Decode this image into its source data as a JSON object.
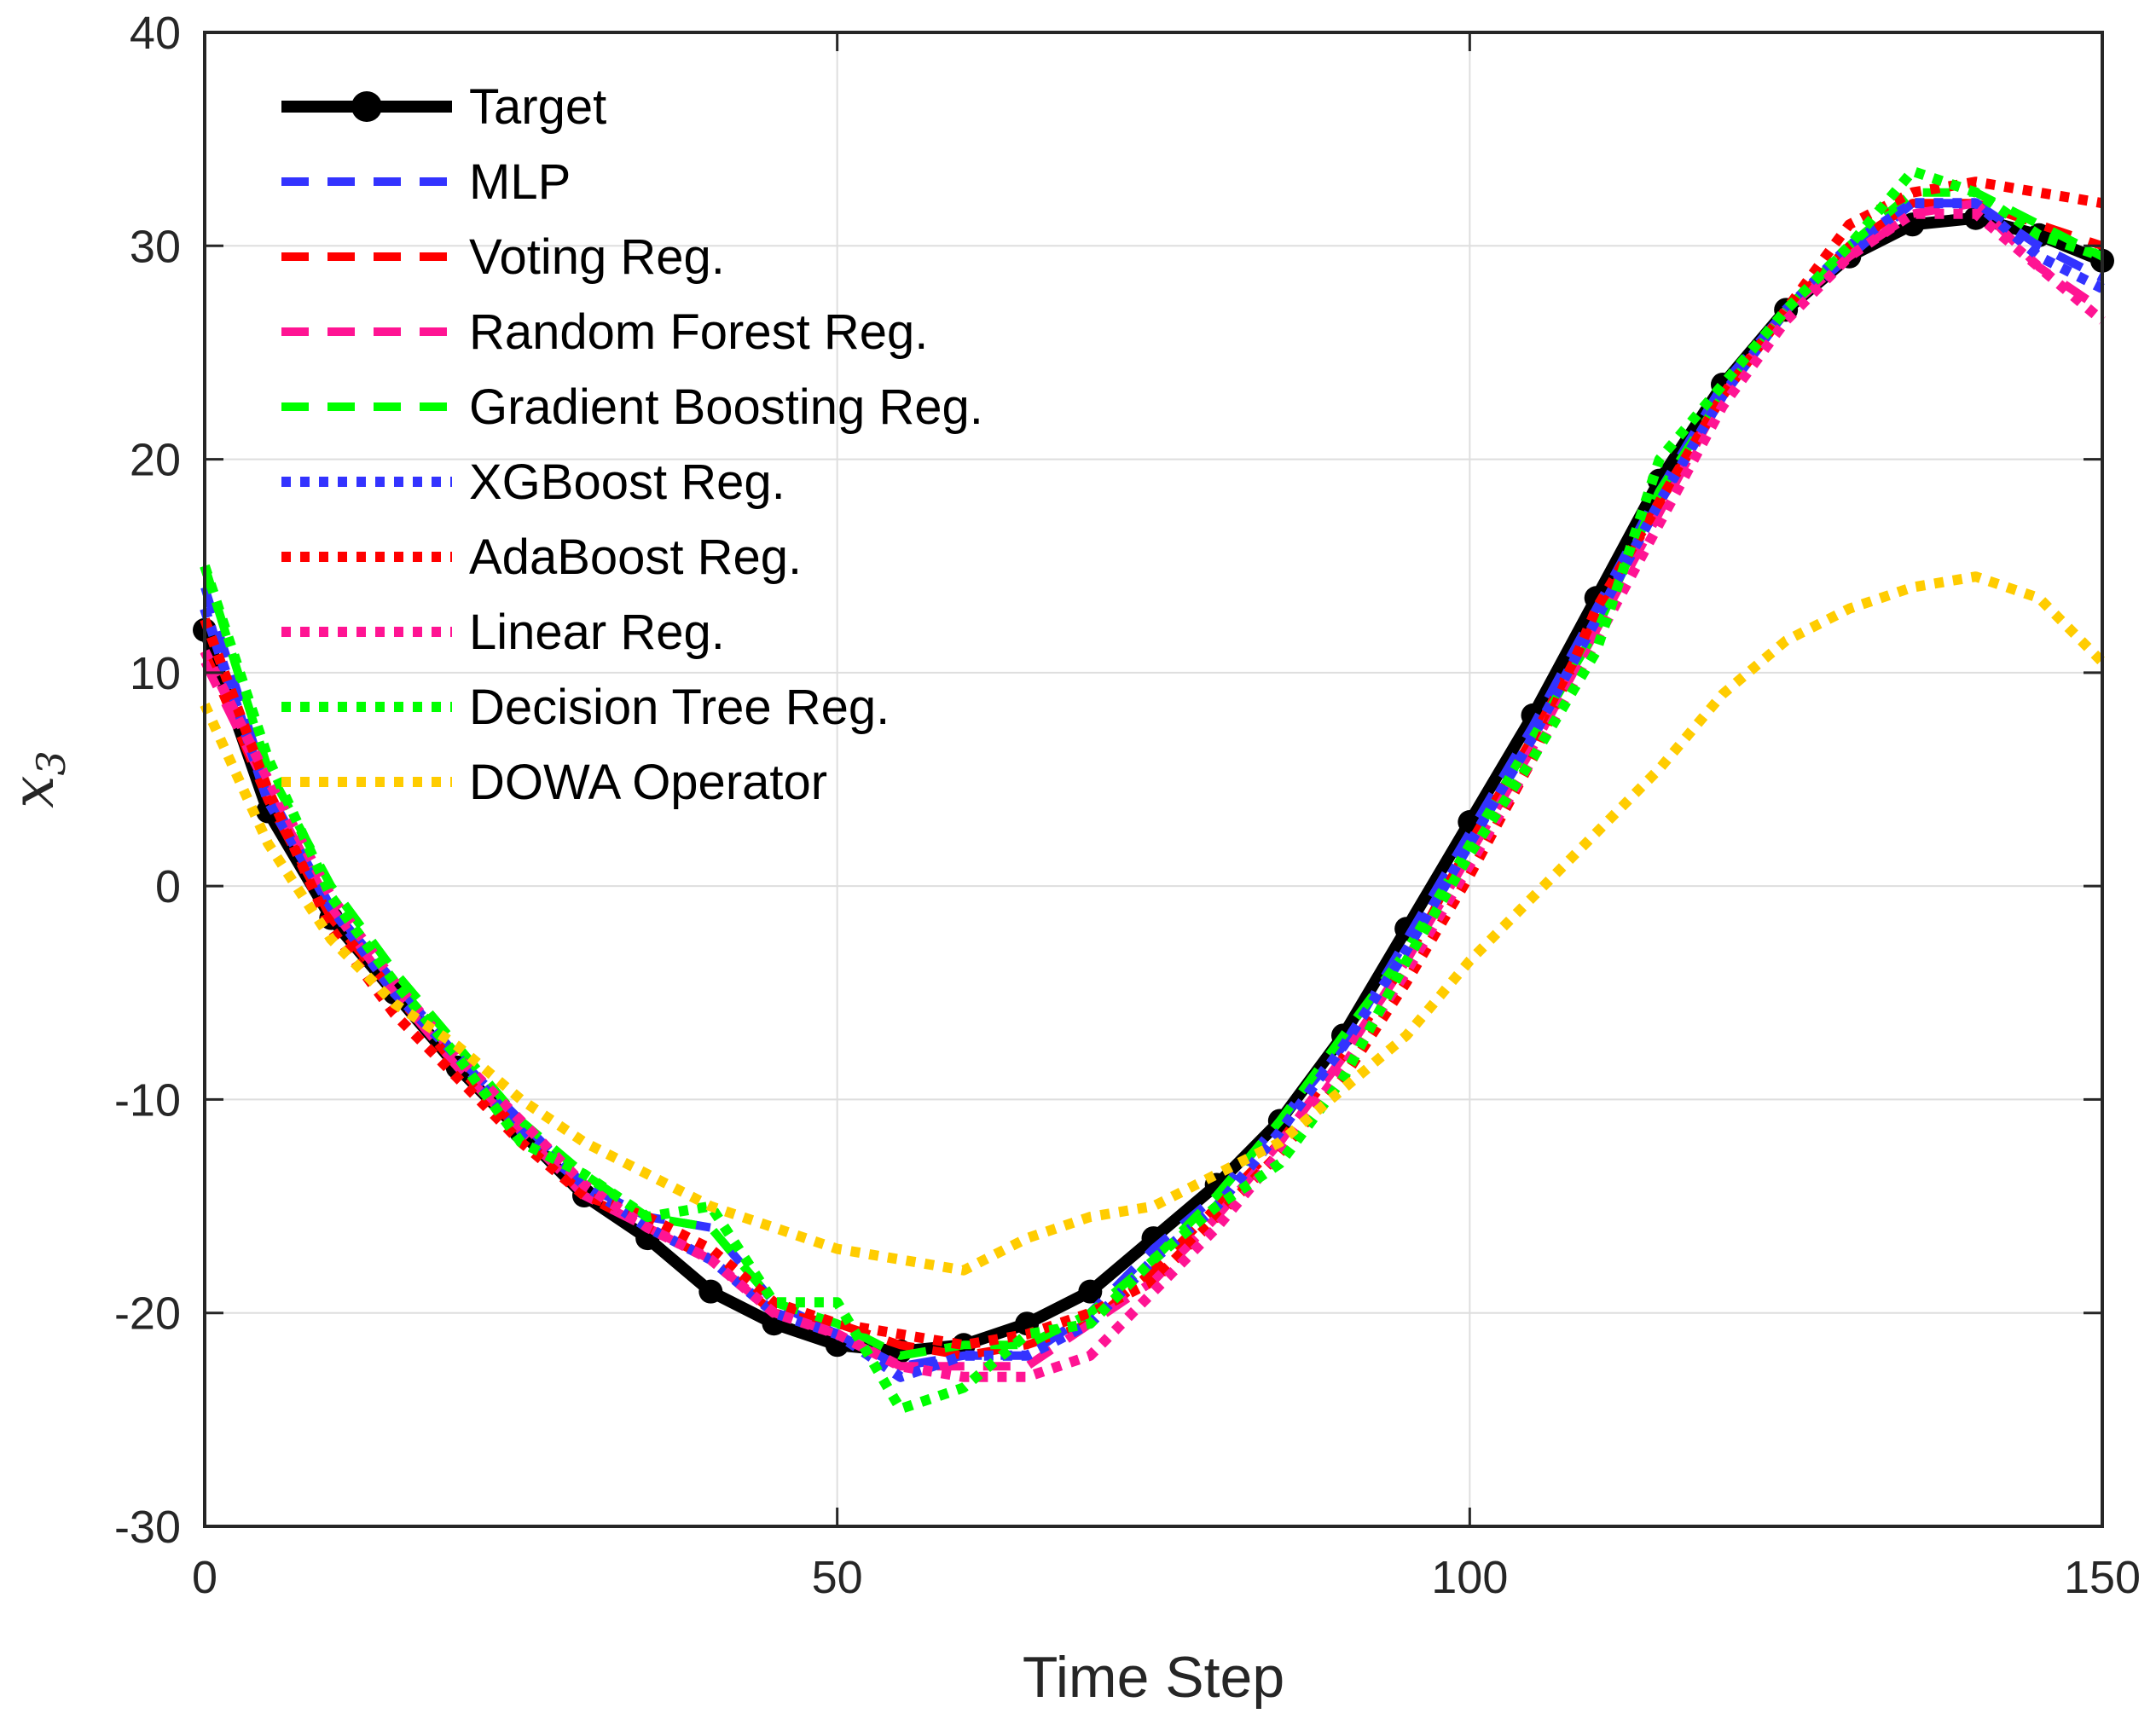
{
  "chart_data": {
    "type": "line",
    "title": "",
    "xlabel": "Time Step",
    "ylabel": {
      "symbol": "x",
      "subscript": "3"
    },
    "xlim": [
      0,
      150
    ],
    "ylim": [
      -30,
      40
    ],
    "xticks": [
      0,
      50,
      100,
      150
    ],
    "yticks": [
      -30,
      -20,
      -10,
      0,
      10,
      20,
      30,
      40
    ],
    "xtick_labels": [
      "0",
      "50",
      "100",
      "150"
    ],
    "ytick_labels": [
      "-30",
      "-20",
      "-10",
      "0",
      "10",
      "20",
      "30",
      "40"
    ],
    "grid": true,
    "legend_position": "top-left",
    "series": [
      {
        "name": "Target",
        "color": "#000000",
        "style": "solid-marker",
        "x": [
          0,
          5,
          10,
          15,
          20,
          25,
          30,
          35,
          40,
          45,
          50,
          55,
          60,
          65,
          70,
          75,
          80,
          85,
          90,
          95,
          100,
          105,
          110,
          115,
          120,
          125,
          130,
          135,
          140,
          145,
          150
        ],
        "y": [
          12,
          3.5,
          -1.5,
          -5,
          -8.5,
          -11.5,
          -14.5,
          -16.5,
          -19,
          -20.5,
          -21.5,
          -21.8,
          -21.5,
          -20.5,
          -19,
          -16.5,
          -14,
          -11,
          -7,
          -2,
          3,
          8,
          13.5,
          19,
          23.5,
          27,
          29.5,
          31,
          31.3,
          30.5,
          29.3
        ]
      },
      {
        "name": "MLP",
        "color": "#3333ff",
        "style": "dashed",
        "x": [
          0,
          5,
          10,
          15,
          20,
          25,
          30,
          35,
          40,
          45,
          50,
          55,
          60,
          65,
          70,
          75,
          80,
          85,
          90,
          95,
          100,
          105,
          110,
          115,
          120,
          125,
          130,
          135,
          140,
          145,
          150
        ],
        "y": [
          14,
          4.5,
          -1,
          -4.5,
          -8,
          -11,
          -14,
          -15.5,
          -16,
          -19.5,
          -21,
          -22.5,
          -22,
          -22,
          -20,
          -17,
          -14.5,
          -11,
          -7.5,
          -2.5,
          2.5,
          7.5,
          13,
          18.5,
          23.5,
          27,
          29.5,
          32,
          32,
          30,
          28.5
        ]
      },
      {
        "name": "Voting Reg.",
        "color": "#ff0000",
        "style": "dashed",
        "x": [
          0,
          5,
          10,
          15,
          20,
          25,
          30,
          35,
          40,
          45,
          50,
          55,
          60,
          65,
          70,
          75,
          80,
          85,
          90,
          95,
          100,
          105,
          110,
          115,
          120,
          125,
          130,
          135,
          140,
          145,
          150
        ],
        "y": [
          11,
          4,
          -1.5,
          -5,
          -8.5,
          -11.5,
          -14.5,
          -16,
          -17.5,
          -20,
          -20.5,
          -21.5,
          -22,
          -21.5,
          -20.5,
          -18,
          -15,
          -12,
          -8,
          -3.5,
          2,
          7,
          12.5,
          18,
          23,
          27,
          30,
          32,
          32,
          31,
          30
        ]
      },
      {
        "name": "Random Forest Reg.",
        "color": "#ff1493",
        "style": "dashed",
        "x": [
          0,
          5,
          10,
          15,
          20,
          25,
          30,
          35,
          40,
          45,
          50,
          55,
          60,
          65,
          70,
          75,
          80,
          85,
          90,
          95,
          100,
          105,
          110,
          115,
          120,
          125,
          130,
          135,
          140,
          145,
          150
        ],
        "y": [
          10.5,
          4.5,
          -1,
          -5,
          -8.5,
          -11.5,
          -14.5,
          -16,
          -17.5,
          -20,
          -21,
          -22.5,
          -22.5,
          -22.5,
          -20.5,
          -18.5,
          -15.5,
          -12,
          -8,
          -3.5,
          1.5,
          6.5,
          12,
          17.5,
          23,
          27,
          29.5,
          31.5,
          32,
          29,
          27
        ]
      },
      {
        "name": "Gradient Boosting Reg.",
        "color": "#00ff00",
        "style": "dashed",
        "x": [
          0,
          5,
          10,
          15,
          20,
          25,
          30,
          35,
          40,
          45,
          50,
          55,
          60,
          65,
          70,
          75,
          80,
          85,
          90,
          95,
          100,
          105,
          110,
          115,
          120,
          125,
          130,
          135,
          140,
          145,
          150
        ],
        "y": [
          15,
          5.5,
          0,
          -4,
          -7.5,
          -11,
          -13.5,
          -15.5,
          -16,
          -19.5,
          -20.5,
          -22,
          -21.5,
          -21.5,
          -20,
          -17.5,
          -14.5,
          -11,
          -7,
          -3,
          2,
          7,
          12,
          18.5,
          23,
          27,
          30,
          32.5,
          32.5,
          31,
          29.5
        ]
      },
      {
        "name": "XGBoost Reg.",
        "color": "#3333ff",
        "style": "dotted",
        "x": [
          0,
          5,
          10,
          15,
          20,
          25,
          30,
          35,
          40,
          45,
          50,
          55,
          60,
          65,
          70,
          75,
          80,
          85,
          90,
          95,
          100,
          105,
          110,
          115,
          120,
          125,
          130,
          135,
          140,
          145,
          150
        ],
        "y": [
          13,
          4,
          -1,
          -5,
          -8,
          -11.5,
          -14,
          -16,
          -17.5,
          -20,
          -21,
          -23,
          -22,
          -22,
          -20.5,
          -17.5,
          -15,
          -11.5,
          -7.5,
          -3,
          2,
          7,
          12.5,
          18,
          23,
          27,
          30,
          32,
          32,
          29.5,
          28
        ]
      },
      {
        "name": "AdaBoost Reg.",
        "color": "#ff0000",
        "style": "dotted",
        "x": [
          0,
          5,
          10,
          15,
          20,
          25,
          30,
          35,
          40,
          45,
          50,
          55,
          60,
          65,
          70,
          75,
          80,
          85,
          90,
          95,
          100,
          105,
          110,
          115,
          120,
          125,
          130,
          135,
          140,
          145,
          150
        ],
        "y": [
          12.5,
          4.5,
          -2,
          -6,
          -9,
          -12,
          -14.5,
          -15.5,
          -17,
          -19.5,
          -20.5,
          -21,
          -21.5,
          -21,
          -20,
          -18.5,
          -15.5,
          -12.5,
          -9,
          -4.5,
          0.5,
          6,
          13,
          18,
          23,
          27,
          31,
          32.5,
          33,
          32.5,
          32
        ]
      },
      {
        "name": "Linear Reg.",
        "color": "#ff1493",
        "style": "dotted",
        "x": [
          0,
          5,
          10,
          15,
          20,
          25,
          30,
          35,
          40,
          45,
          50,
          55,
          60,
          65,
          70,
          75,
          80,
          85,
          90,
          95,
          100,
          105,
          110,
          115,
          120,
          125,
          130,
          135,
          140,
          145,
          150
        ],
        "y": [
          11,
          5,
          -0.5,
          -4.5,
          -8,
          -11,
          -14,
          -16,
          -17.5,
          -20,
          -21,
          -22.5,
          -23,
          -23,
          -22,
          -19,
          -16,
          -12.5,
          -8.5,
          -4,
          1,
          6,
          11.5,
          17,
          22.5,
          26.5,
          29.5,
          31.5,
          31.5,
          29,
          26.5
        ]
      },
      {
        "name": "Decision Tree Reg.",
        "color": "#00ff00",
        "style": "dotted",
        "x": [
          0,
          5,
          10,
          15,
          20,
          25,
          30,
          35,
          40,
          45,
          50,
          55,
          60,
          65,
          70,
          75,
          80,
          85,
          90,
          95,
          100,
          105,
          110,
          115,
          120,
          125,
          130,
          135,
          140,
          145,
          150
        ],
        "y": [
          15,
          6,
          -0.5,
          -4.5,
          -8,
          -12,
          -13.5,
          -15.5,
          -15,
          -19.5,
          -19.5,
          -24.5,
          -23.5,
          -21,
          -20.5,
          -17.5,
          -15,
          -13,
          -9,
          -3.5,
          1.5,
          6,
          11,
          20,
          23.5,
          27,
          30,
          33.5,
          32.5,
          30.5,
          29.5
        ]
      },
      {
        "name": "DOWA Operator",
        "color": "#ffcc00",
        "style": "dotted",
        "x": [
          0,
          5,
          10,
          15,
          20,
          25,
          30,
          35,
          40,
          45,
          50,
          55,
          60,
          65,
          70,
          75,
          80,
          85,
          90,
          95,
          100,
          105,
          110,
          115,
          120,
          125,
          130,
          135,
          140,
          145,
          150
        ],
        "y": [
          8.5,
          2,
          -2.5,
          -5.5,
          -7.5,
          -10,
          -12,
          -13.5,
          -15,
          -16,
          -17,
          -17.5,
          -18,
          -16.5,
          -15.5,
          -15,
          -13.5,
          -12,
          -9.5,
          -7,
          -3.5,
          -0.5,
          2.5,
          5.5,
          9,
          11.5,
          13,
          14,
          14.5,
          13.5,
          10.5
        ]
      }
    ]
  }
}
